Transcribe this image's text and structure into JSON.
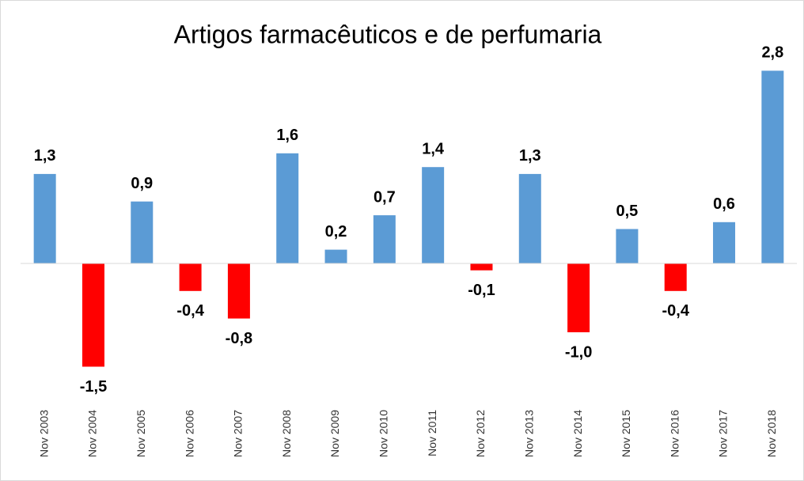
{
  "chart_data": {
    "type": "bar",
    "title": "Artigos farmacêuticos e de perfumaria",
    "categories": [
      "Nov 2003",
      "Nov 2004",
      "Nov 2005",
      "Nov 2006",
      "Nov 2007",
      "Nov 2008",
      "Nov 2009",
      "Nov 2010",
      "Nov 2011",
      "Nov 2012",
      "Nov 2013",
      "Nov 2014",
      "Nov 2015",
      "Nov 2016",
      "Nov 2017",
      "Nov 2018"
    ],
    "values": [
      1.3,
      -1.5,
      0.9,
      -0.4,
      -0.8,
      1.6,
      0.2,
      0.7,
      1.4,
      -0.1,
      1.3,
      -1.0,
      0.5,
      -0.4,
      0.6,
      2.8
    ],
    "value_labels": [
      "1,3",
      "-1,5",
      "0,9",
      "-0,4",
      "-0,8",
      "1,6",
      "0,2",
      "0,7",
      "1,4",
      "-0,1",
      "1,3",
      "-1,0",
      "0,5",
      "-0,4",
      "0,6",
      "2,8"
    ],
    "color": "#5b9bd5",
    "negative_color": "#ff0000",
    "ylim": [
      -2,
      3
    ]
  }
}
